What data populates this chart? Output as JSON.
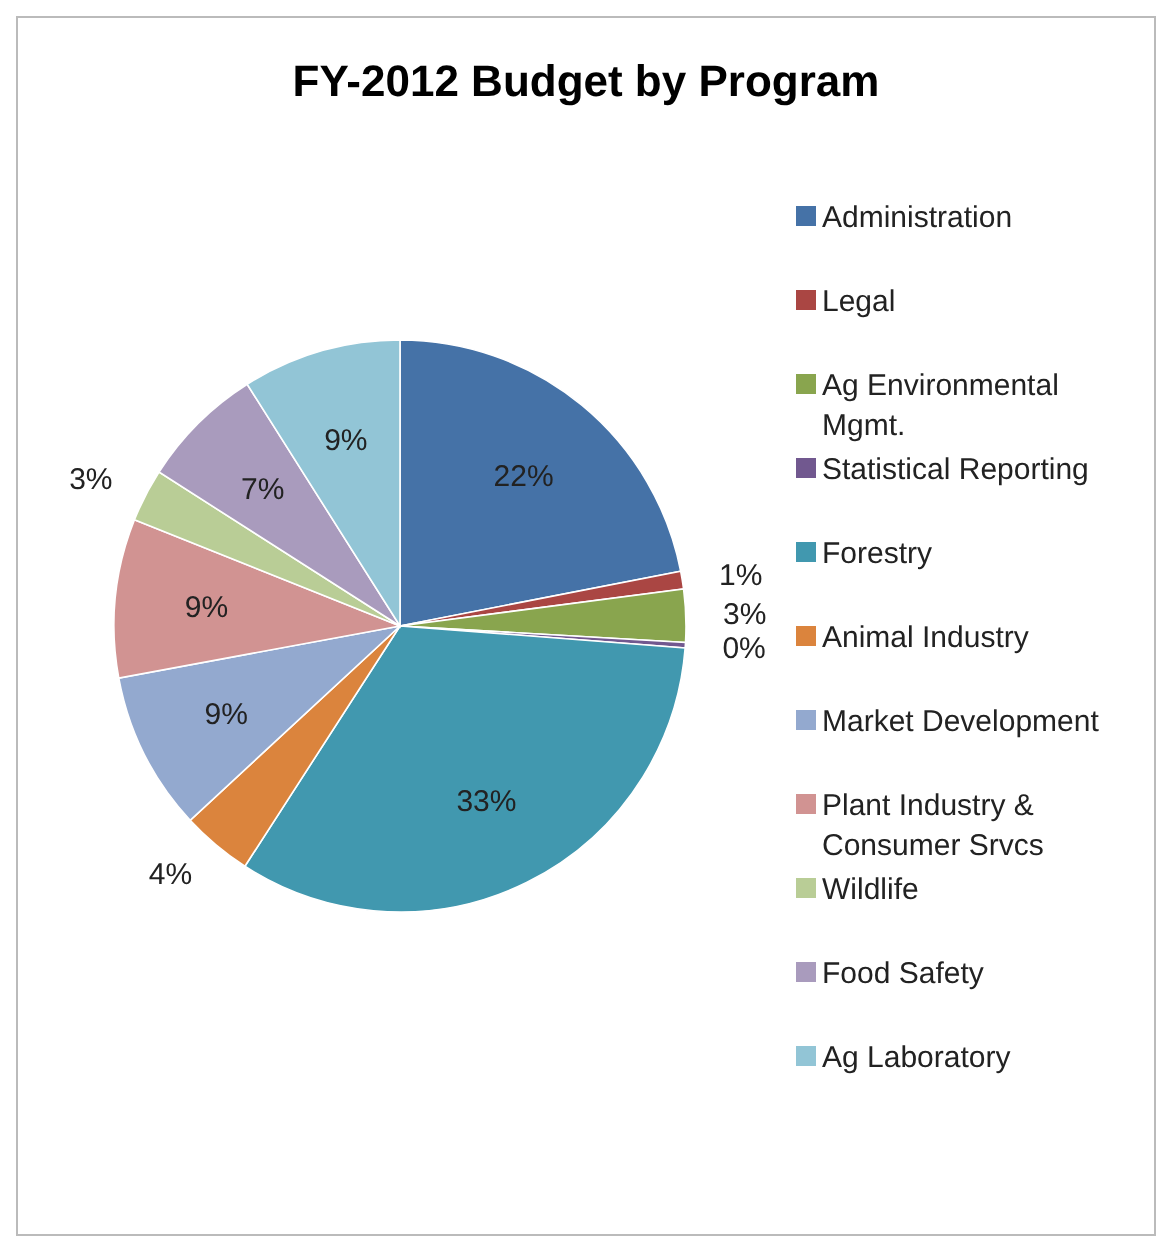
{
  "chart_data": {
    "type": "pie",
    "title": "FY-2012 Budget by Program",
    "categories": [
      "Administration",
      "Legal",
      "Ag Environmental Mgmt.",
      "Statistical Reporting",
      "Forestry",
      "Animal Industry",
      "Market Development",
      "Plant Industry & Consumer Srvcs",
      "Wildlife",
      "Food Safety",
      "Ag Laboratory"
    ],
    "values": [
      22,
      1,
      3,
      0.3,
      33,
      4,
      9,
      9,
      3,
      7,
      9
    ],
    "value_labels": [
      "22%",
      "1%",
      "3%",
      "0%",
      "33%",
      "4%",
      "9%",
      "9%",
      "3%",
      "7%",
      "9%"
    ],
    "colors": [
      "#4572a7",
      "#aa4643",
      "#89a54e",
      "#71588f",
      "#4198af",
      "#db843d",
      "#93a9cf",
      "#d19392",
      "#b9cd96",
      "#a99bbd",
      "#92c5d6"
    ],
    "legend": "right"
  }
}
